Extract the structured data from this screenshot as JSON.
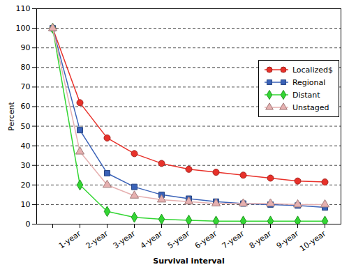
{
  "chart_data": {
    "type": "line",
    "x_label": "Survival interval",
    "y_label": "Percent",
    "categories": [
      null,
      "1-year",
      "2-year",
      "3-year",
      "4-year",
      "5-year",
      "6-year",
      "7-year",
      "8-year",
      "9-year",
      "10-year"
    ],
    "series": [
      {
        "name": "Localized$",
        "color": "#e8312a",
        "marker": "circle",
        "values": [
          100,
          62,
          44,
          36,
          31,
          28,
          26.5,
          25,
          23.5,
          22,
          21.5
        ]
      },
      {
        "name": "Regional",
        "color": "#3a62b8",
        "marker": "square",
        "values": [
          100,
          48,
          26,
          19,
          15,
          13,
          11.5,
          10.5,
          10,
          9.5,
          8.5
        ]
      },
      {
        "name": "Distant",
        "color": "#33d633",
        "marker": "diamond",
        "values": [
          100,
          20,
          6.5,
          3.5,
          2.5,
          2,
          1.5,
          1.5,
          1.5,
          1.5,
          1.5
        ]
      },
      {
        "name": "Unstaged",
        "color": "#e6b0b0",
        "marker": "triangle",
        "values": [
          100,
          37,
          20,
          14.5,
          12.5,
          11.5,
          10.5,
          10.5,
          10.5,
          10,
          10
        ]
      }
    ],
    "ylim": [
      0,
      110
    ],
    "yticks": [
      0,
      10,
      20,
      30,
      40,
      50,
      60,
      70,
      80,
      90,
      100,
      110
    ],
    "grid": true,
    "legend": "top-right"
  }
}
